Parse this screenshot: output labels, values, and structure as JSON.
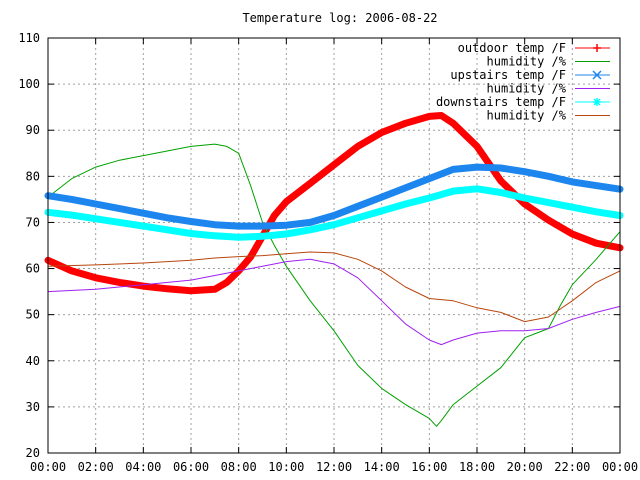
{
  "chart_data": {
    "type": "line",
    "title": "Temperature log: 2006-08-22",
    "xlabel": "",
    "ylabel": "",
    "xlim": [
      0,
      24
    ],
    "ylim": [
      20,
      110
    ],
    "grid": true,
    "legend_position": "top-right",
    "x_ticks": [
      "00:00",
      "02:00",
      "04:00",
      "06:00",
      "08:00",
      "10:00",
      "12:00",
      "14:00",
      "16:00",
      "18:00",
      "20:00",
      "22:00",
      "00:00"
    ],
    "y_ticks": [
      "20",
      "30",
      "40",
      "50",
      "60",
      "70",
      "80",
      "90",
      "100",
      "110"
    ],
    "series": [
      {
        "name": "outdoor temp /F",
        "color": "#ff0000",
        "marker": "plus",
        "x": [
          0,
          1,
          2,
          3,
          4,
          5,
          6,
          7,
          7.5,
          8,
          8.5,
          9,
          9.5,
          10,
          11,
          12,
          13,
          14,
          15,
          16,
          16.5,
          17,
          18,
          19,
          20,
          21,
          22,
          23,
          24
        ],
        "y": [
          61.8,
          59.5,
          58,
          57,
          56.2,
          55.6,
          55.2,
          55.5,
          57,
          59.5,
          62.5,
          67,
          71.5,
          74.5,
          78.5,
          82.5,
          86.5,
          89.5,
          91.5,
          93,
          93.2,
          91.5,
          86.5,
          79,
          74,
          70.5,
          67.5,
          65.5,
          64.5
        ]
      },
      {
        "name": "humidity /%",
        "color": "#00a000",
        "marker": "none",
        "x": [
          0,
          1,
          2,
          3,
          4,
          5,
          6,
          7,
          7.5,
          8,
          8.5,
          9,
          9.5,
          10,
          11,
          12,
          13,
          14,
          15,
          16,
          16.3,
          16.5,
          17,
          18,
          19,
          20,
          20.5,
          21,
          21.5,
          22,
          23,
          24
        ],
        "y": [
          75.5,
          79.5,
          82,
          83.5,
          84.5,
          85.5,
          86.5,
          87,
          86.5,
          85,
          78,
          70,
          65,
          60.5,
          53,
          46.5,
          39,
          34,
          30.5,
          27.5,
          25.8,
          27,
          30.5,
          34.5,
          38.5,
          45,
          46,
          47,
          52,
          56.5,
          62,
          68
        ]
      },
      {
        "name": "upstairs temp /F",
        "color": "#1c86ee",
        "marker": "cross",
        "x": [
          0,
          1,
          2,
          3,
          4,
          5,
          6,
          7,
          8,
          9,
          10,
          11,
          12,
          13,
          14,
          15,
          16,
          17,
          18,
          19,
          20,
          21,
          22,
          23,
          24
        ],
        "y": [
          75.8,
          75,
          74,
          73,
          72,
          71,
          70.2,
          69.5,
          69.2,
          69.2,
          69.4,
          70,
          71.5,
          73.5,
          75.5,
          77.5,
          79.5,
          81.5,
          82,
          81.8,
          81,
          80,
          78.8,
          78,
          77.2
        ]
      },
      {
        "name": "humidity /%",
        "color": "#a020f0",
        "marker": "none",
        "x": [
          0,
          2,
          4,
          6,
          7,
          8,
          9,
          10,
          11,
          11.5,
          12,
          13,
          14,
          15,
          16,
          16.5,
          17,
          18,
          19,
          20,
          21,
          22,
          23,
          24
        ],
        "y": [
          55,
          55.5,
          56.5,
          57.5,
          58.5,
          59.5,
          60.5,
          61.5,
          62,
          61.5,
          61,
          58,
          53,
          48,
          44.5,
          43.5,
          44.5,
          46,
          46.5,
          46.5,
          47,
          49,
          50.5,
          51.8
        ]
      },
      {
        "name": "downstairs temp /F",
        "color": "#00ffff",
        "marker": "star",
        "x": [
          0,
          1,
          2,
          3,
          4,
          5,
          6,
          7,
          8,
          9,
          10,
          11,
          12,
          13,
          14,
          15,
          16,
          17,
          18,
          19,
          20,
          21,
          22,
          23,
          24
        ],
        "y": [
          72.2,
          71.6,
          70.8,
          70,
          69.2,
          68.4,
          67.6,
          67.1,
          66.8,
          67,
          67.5,
          68.4,
          69.5,
          71,
          72.5,
          74,
          75.3,
          76.8,
          77.3,
          76.5,
          75.3,
          74.3,
          73.3,
          72.3,
          71.5
        ]
      },
      {
        "name": "humidity /%",
        "color": "#b8460b",
        "marker": "none",
        "x": [
          0,
          2,
          4,
          6,
          7,
          8,
          9,
          10,
          11,
          12,
          13,
          14,
          15,
          16,
          17,
          18,
          19,
          20,
          21,
          22,
          23,
          24
        ],
        "y": [
          60.5,
          60.8,
          61.2,
          61.8,
          62.3,
          62.6,
          62.8,
          63.2,
          63.6,
          63.4,
          62,
          59.5,
          56,
          53.5,
          53,
          51.5,
          50.5,
          48.5,
          49.5,
          53,
          57,
          59.5
        ]
      }
    ]
  }
}
